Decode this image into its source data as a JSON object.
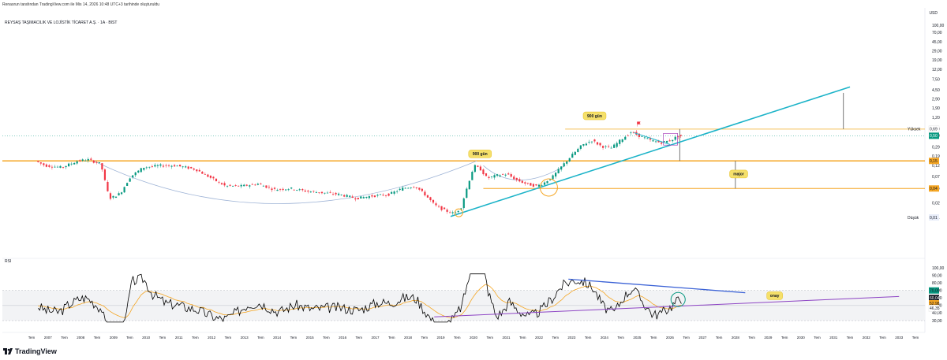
{
  "header": {
    "caption": "Renasrun tarafından TradingView.com ile Mis 14, 2026 10:48 UTC+3 tarihinde oluşturuldu",
    "symbol_line": "REYSAŞ TAŞIMACILIK VE LOJİSTİK TİCARET A.Ş. · 1A · BIST",
    "currency": "USD"
  },
  "footer": {
    "brand": "TradingView"
  },
  "rsi_panel": {
    "label": "RSI"
  },
  "colors": {
    "up": "#089981",
    "down": "#f23645",
    "trend": "#1bb3c8",
    "level": "#f5a623",
    "arc": "#9fb4d6",
    "rsi": "#000000",
    "rsi_ma": "#f5a623",
    "downtrend": "#3b62d6",
    "uptrend_rsi": "#8d44c4"
  },
  "chart_data": {
    "type": "candlestick",
    "price_axis": {
      "scale": "log",
      "ticks": [
        "100,00",
        "70,00",
        "45,00",
        "29,00",
        "19,00",
        "12,00",
        "7,50",
        "4,50",
        "2,90",
        "1,90",
        "1,20",
        "0,69",
        "0,50",
        "0,29",
        "0,19",
        "0,12",
        "0,07",
        "0,04",
        "0,02",
        "0,01"
      ],
      "tick_values": [
        100,
        70,
        45,
        29,
        19,
        12,
        7.5,
        4.5,
        2.9,
        1.9,
        1.2,
        0.69,
        0.5,
        0.29,
        0.19,
        0.12,
        0.07,
        0.04,
        0.02,
        0.01
      ],
      "badges": [
        {
          "text": "0,69",
          "label": "Yüksek",
          "value": 0.69,
          "color": "#ffffff",
          "text_color": "#131722"
        },
        {
          "text": "0,50",
          "value": 0.5,
          "color": "#089981",
          "text_color": "#ffffff"
        },
        {
          "text": "0,15",
          "value": 0.15,
          "color": "#f5a623",
          "text_color": "#131722"
        },
        {
          "text": "0,04",
          "value": 0.04,
          "color": "#f5a623",
          "text_color": "#131722"
        },
        {
          "text": "0,01",
          "label": "Düşük",
          "value": 0.01,
          "color": "#e9eefa",
          "text_color": "#131722"
        }
      ]
    },
    "x_axis": {
      "labels": [
        "Tem",
        "2007",
        "Tem",
        "2008",
        "Tem",
        "2009",
        "Tem",
        "2010",
        "Tem",
        "2011",
        "Tem",
        "2012",
        "Tem",
        "2013",
        "Tem",
        "2014",
        "Tem",
        "2015",
        "Tem",
        "2016",
        "Tem",
        "2017",
        "Tem",
        "2018",
        "Tem",
        "2019",
        "Tem",
        "2020",
        "Tem",
        "2021",
        "Tem",
        "2022",
        "Tem",
        "2023",
        "Tem",
        "2024",
        "Tem",
        "2025",
        "Tem",
        "2026",
        "Tem",
        "2027",
        "Tem",
        "2028",
        "Tem",
        "2029",
        "Tem",
        "2030",
        "Tem",
        "2031",
        "Tem",
        "2032",
        "Tem",
        "2033",
        "Tem"
      ],
      "start_year": 2006.5,
      "end_year": 2033.5
    },
    "candles_yearly": [
      {
        "t": 2006.7,
        "v": 0.15
      },
      {
        "t": 2007.0,
        "v": 0.12
      },
      {
        "t": 2007.5,
        "v": 0.11
      },
      {
        "t": 2008.0,
        "v": 0.15
      },
      {
        "t": 2008.3,
        "v": 0.16
      },
      {
        "t": 2008.7,
        "v": 0.13
      },
      {
        "t": 2008.9,
        "v": 0.035
      },
      {
        "t": 2009.0,
        "v": 0.025
      },
      {
        "t": 2009.3,
        "v": 0.032
      },
      {
        "t": 2009.6,
        "v": 0.07
      },
      {
        "t": 2010.0,
        "v": 0.11
      },
      {
        "t": 2010.5,
        "v": 0.12
      },
      {
        "t": 2011.0,
        "v": 0.12
      },
      {
        "t": 2011.6,
        "v": 0.1
      },
      {
        "t": 2012.0,
        "v": 0.07
      },
      {
        "t": 2012.5,
        "v": 0.045
      },
      {
        "t": 2013.0,
        "v": 0.045
      },
      {
        "t": 2013.5,
        "v": 0.05
      },
      {
        "t": 2014.0,
        "v": 0.038
      },
      {
        "t": 2014.5,
        "v": 0.04
      },
      {
        "t": 2015.0,
        "v": 0.035
      },
      {
        "t": 2015.6,
        "v": 0.032
      },
      {
        "t": 2016.0,
        "v": 0.03
      },
      {
        "t": 2016.5,
        "v": 0.025
      },
      {
        "t": 2017.0,
        "v": 0.028
      },
      {
        "t": 2017.5,
        "v": 0.03
      },
      {
        "t": 2017.9,
        "v": 0.04
      },
      {
        "t": 2018.3,
        "v": 0.045
      },
      {
        "t": 2018.6,
        "v": 0.03
      },
      {
        "t": 2018.9,
        "v": 0.018
      },
      {
        "t": 2019.2,
        "v": 0.014
      },
      {
        "t": 2019.5,
        "v": 0.012
      },
      {
        "t": 2019.7,
        "v": 0.016
      },
      {
        "t": 2019.9,
        "v": 0.045
      },
      {
        "t": 2020.1,
        "v": 0.12
      },
      {
        "t": 2020.3,
        "v": 0.1
      },
      {
        "t": 2020.5,
        "v": 0.065
      },
      {
        "t": 2020.8,
        "v": 0.075
      },
      {
        "t": 2021.1,
        "v": 0.08
      },
      {
        "t": 2021.4,
        "v": 0.06
      },
      {
        "t": 2021.7,
        "v": 0.05
      },
      {
        "t": 2022.0,
        "v": 0.045
      },
      {
        "t": 2022.2,
        "v": 0.05
      },
      {
        "t": 2022.5,
        "v": 0.07
      },
      {
        "t": 2022.8,
        "v": 0.12
      },
      {
        "t": 2023.1,
        "v": 0.2
      },
      {
        "t": 2023.4,
        "v": 0.32
      },
      {
        "t": 2023.7,
        "v": 0.4
      },
      {
        "t": 2024.0,
        "v": 0.3
      },
      {
        "t": 2024.3,
        "v": 0.28
      },
      {
        "t": 2024.6,
        "v": 0.42
      },
      {
        "t": 2024.9,
        "v": 0.6
      },
      {
        "t": 2025.2,
        "v": 0.48
      },
      {
        "t": 2025.5,
        "v": 0.4
      },
      {
        "t": 2025.8,
        "v": 0.36
      },
      {
        "t": 2026.1,
        "v": 0.4
      },
      {
        "t": 2026.3,
        "v": 0.48
      },
      {
        "t": 2026.35,
        "v": 0.5
      }
    ],
    "levels": [
      {
        "name": "upper",
        "value": 0.69
      },
      {
        "name": "major",
        "value": 0.15
      },
      {
        "name": "lower",
        "value": 0.04
      }
    ],
    "annotations": [
      {
        "text": "900 gün",
        "t": 2020.2,
        "v": 0.21
      },
      {
        "text": "900 gün",
        "t": 2023.7,
        "v": 1.3
      },
      {
        "text": "major",
        "t": 2028.1,
        "v": 0.08
      },
      {
        "text": "onay",
        "t": 2029.2,
        "v": 0
      }
    ],
    "rsi": {
      "axis_ticks": [
        "100,00",
        "90,00",
        "80,00",
        "70,00",
        "60,00",
        "50,00",
        "40,00",
        "30,00"
      ],
      "tick_values": [
        100,
        90,
        80,
        70,
        60,
        50,
        40,
        30
      ],
      "badges": [
        {
          "text": "70,00",
          "value": 70,
          "color": "#089981"
        },
        {
          "text": "60,04",
          "value": 60.04,
          "color": "#131722"
        },
        {
          "text": "52,98",
          "value": 52.98,
          "color": "#f5a623"
        },
        {
          "text": "46,35",
          "value": 46.35,
          "color": "#ffffff"
        }
      ],
      "upper_band": 70,
      "lower_band": 30,
      "mid": 50
    }
  }
}
